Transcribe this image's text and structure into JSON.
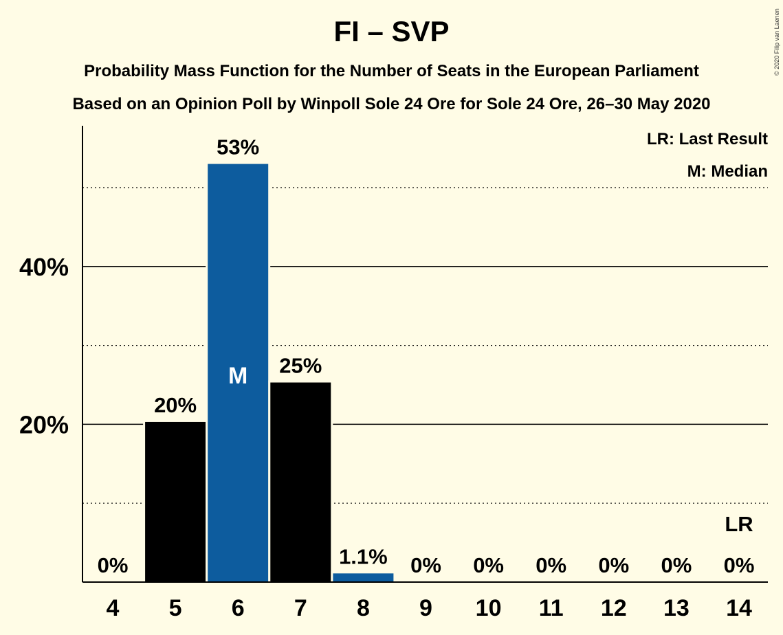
{
  "title": "FI – SVP",
  "subtitle1": "Probability Mass Function for the Number of Seats in the European Parliament",
  "subtitle2": "Based on an Opinion Poll by Winpoll Sole 24 Ore for Sole 24 Ore, 26–30 May 2020",
  "copyright": "© 2020 Filip van Laenen",
  "legend": {
    "last_result": "LR: Last Result",
    "median": "M: Median"
  },
  "colors": {
    "background": "#FFFCE6",
    "bar_default": "#000000",
    "bar_highlight": "#0D5C9E"
  },
  "chart_data": {
    "type": "bar",
    "categories": [
      "4",
      "5",
      "6",
      "7",
      "8",
      "9",
      "10",
      "11",
      "12",
      "13",
      "14"
    ],
    "values": [
      0,
      20.3,
      53,
      25.3,
      1.1,
      0,
      0,
      0,
      0,
      0,
      0
    ],
    "value_labels": [
      "0%",
      "20%",
      "53%",
      "25%",
      "1.1%",
      "0%",
      "0%",
      "0%",
      "0%",
      "0%",
      "0%"
    ],
    "bar_colors": [
      "#000000",
      "#000000",
      "#0D5C9E",
      "#000000",
      "#0D5C9E",
      "#000000",
      "#000000",
      "#000000",
      "#000000",
      "#000000",
      "#000000"
    ],
    "median_category": "6",
    "median_marker": "M",
    "last_result_category": "14",
    "last_result_marker": "LR",
    "yticks": [
      20,
      40
    ],
    "ytick_labels": [
      "20%",
      "40%"
    ],
    "minor_gridlines": [
      10,
      30,
      50
    ],
    "ylim": [
      0,
      58
    ],
    "xlabel": "",
    "ylabel": "",
    "grid": true,
    "legend_position": "top-right"
  }
}
